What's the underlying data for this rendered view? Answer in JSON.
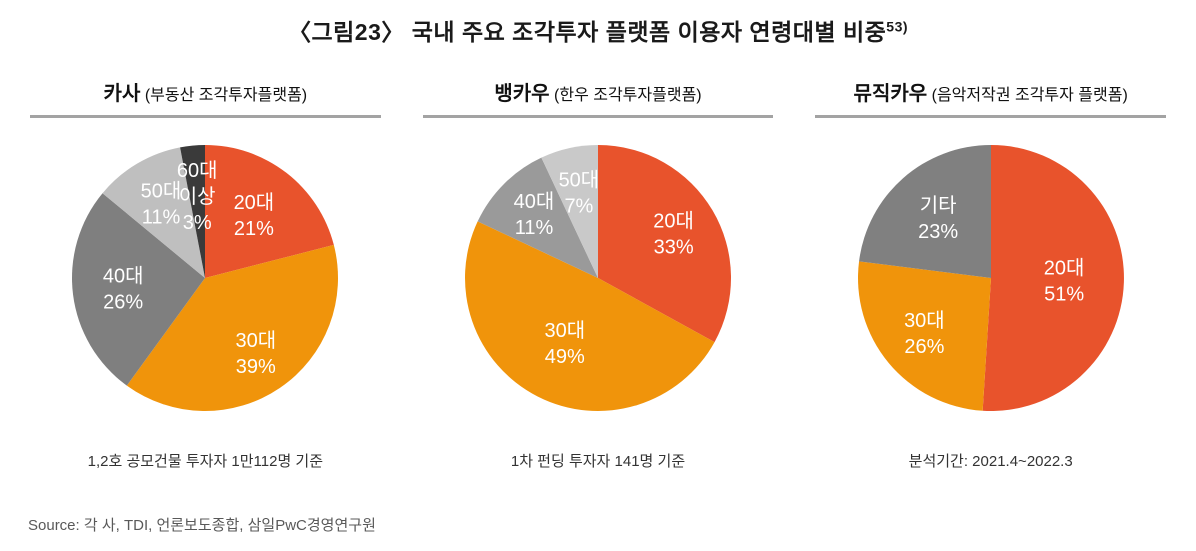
{
  "title": {
    "text": "〈그림23〉 국내 주요 조각투자 플랫폼 이용자 연령대별 비중",
    "footnote": "53)"
  },
  "source": "Source: 각 사, TDI, 언론보도종합, 삼일PwC경영연구원",
  "chart_data": [
    {
      "type": "pie",
      "platform": "카사",
      "platform_desc": "(부동산 조각투자플랫폼)",
      "caption": "1,2호 공모건물 투자자 1만112명 기준",
      "unit": "%",
      "start_angle_deg": 0,
      "direction": "clockwise",
      "slices": [
        {
          "label": "20대",
          "value": 21,
          "color": "#E8532C",
          "label_lines": [
            "20대",
            "21%"
          ],
          "label_r": 0.6
        },
        {
          "label": "30대",
          "value": 39,
          "color": "#F0940B",
          "label_lines": [
            "30대",
            "39%"
          ],
          "label_r": 0.68
        },
        {
          "label": "40대",
          "value": 26,
          "color": "#7F7F7F",
          "label_lines": [
            "40대",
            "26%"
          ],
          "label_r": 0.62
        },
        {
          "label": "50대",
          "value": 11,
          "color": "#BFBFBF",
          "label_lines": [
            "50대",
            "11%"
          ],
          "label_r": 0.65
        },
        {
          "label": "60대 이상",
          "value": 3,
          "color": "#3A3A3A",
          "label_lines": [
            "60대",
            "이상",
            "3%"
          ],
          "label_r": 0.62
        }
      ]
    },
    {
      "type": "pie",
      "platform": "뱅카우",
      "platform_desc": "(한우 조각투자플랫폼)",
      "caption": "1차 펀딩 투자자 141명 기준",
      "unit": "%",
      "start_angle_deg": 0,
      "direction": "clockwise",
      "slices": [
        {
          "label": "20대",
          "value": 33,
          "color": "#E8532C",
          "label_lines": [
            "20대",
            "33%"
          ],
          "label_r": 0.66
        },
        {
          "label": "30대",
          "value": 49,
          "color": "#F0940B",
          "label_lines": [
            "30대",
            "49%"
          ],
          "label_r": 0.55
        },
        {
          "label": "40대",
          "value": 11,
          "color": "#9A9A9A",
          "label_lines": [
            "40대",
            "11%"
          ],
          "label_r": 0.68
        },
        {
          "label": "50대",
          "value": 7,
          "color": "#C9C9C9",
          "label_lines": [
            "50대",
            "7%"
          ],
          "label_r": 0.66
        }
      ]
    },
    {
      "type": "pie",
      "platform": "뮤직카우",
      "platform_desc": "(음악저작권 조각투자 플랫폼)",
      "caption": "분석기간: 2021.4~2022.3",
      "unit": "%",
      "start_angle_deg": 0,
      "direction": "clockwise",
      "slices": [
        {
          "label": "20대",
          "value": 51,
          "color": "#E8532C",
          "label_lines": [
            "20대",
            "51%"
          ],
          "label_r": 0.55
        },
        {
          "label": "30대",
          "value": 26,
          "color": "#F0940B",
          "label_lines": [
            "30대",
            "26%"
          ],
          "label_r": 0.65
        },
        {
          "label": "기타",
          "value": 23,
          "color": "#808080",
          "label_lines": [
            "기타",
            "23%"
          ],
          "label_r": 0.6
        }
      ]
    }
  ]
}
